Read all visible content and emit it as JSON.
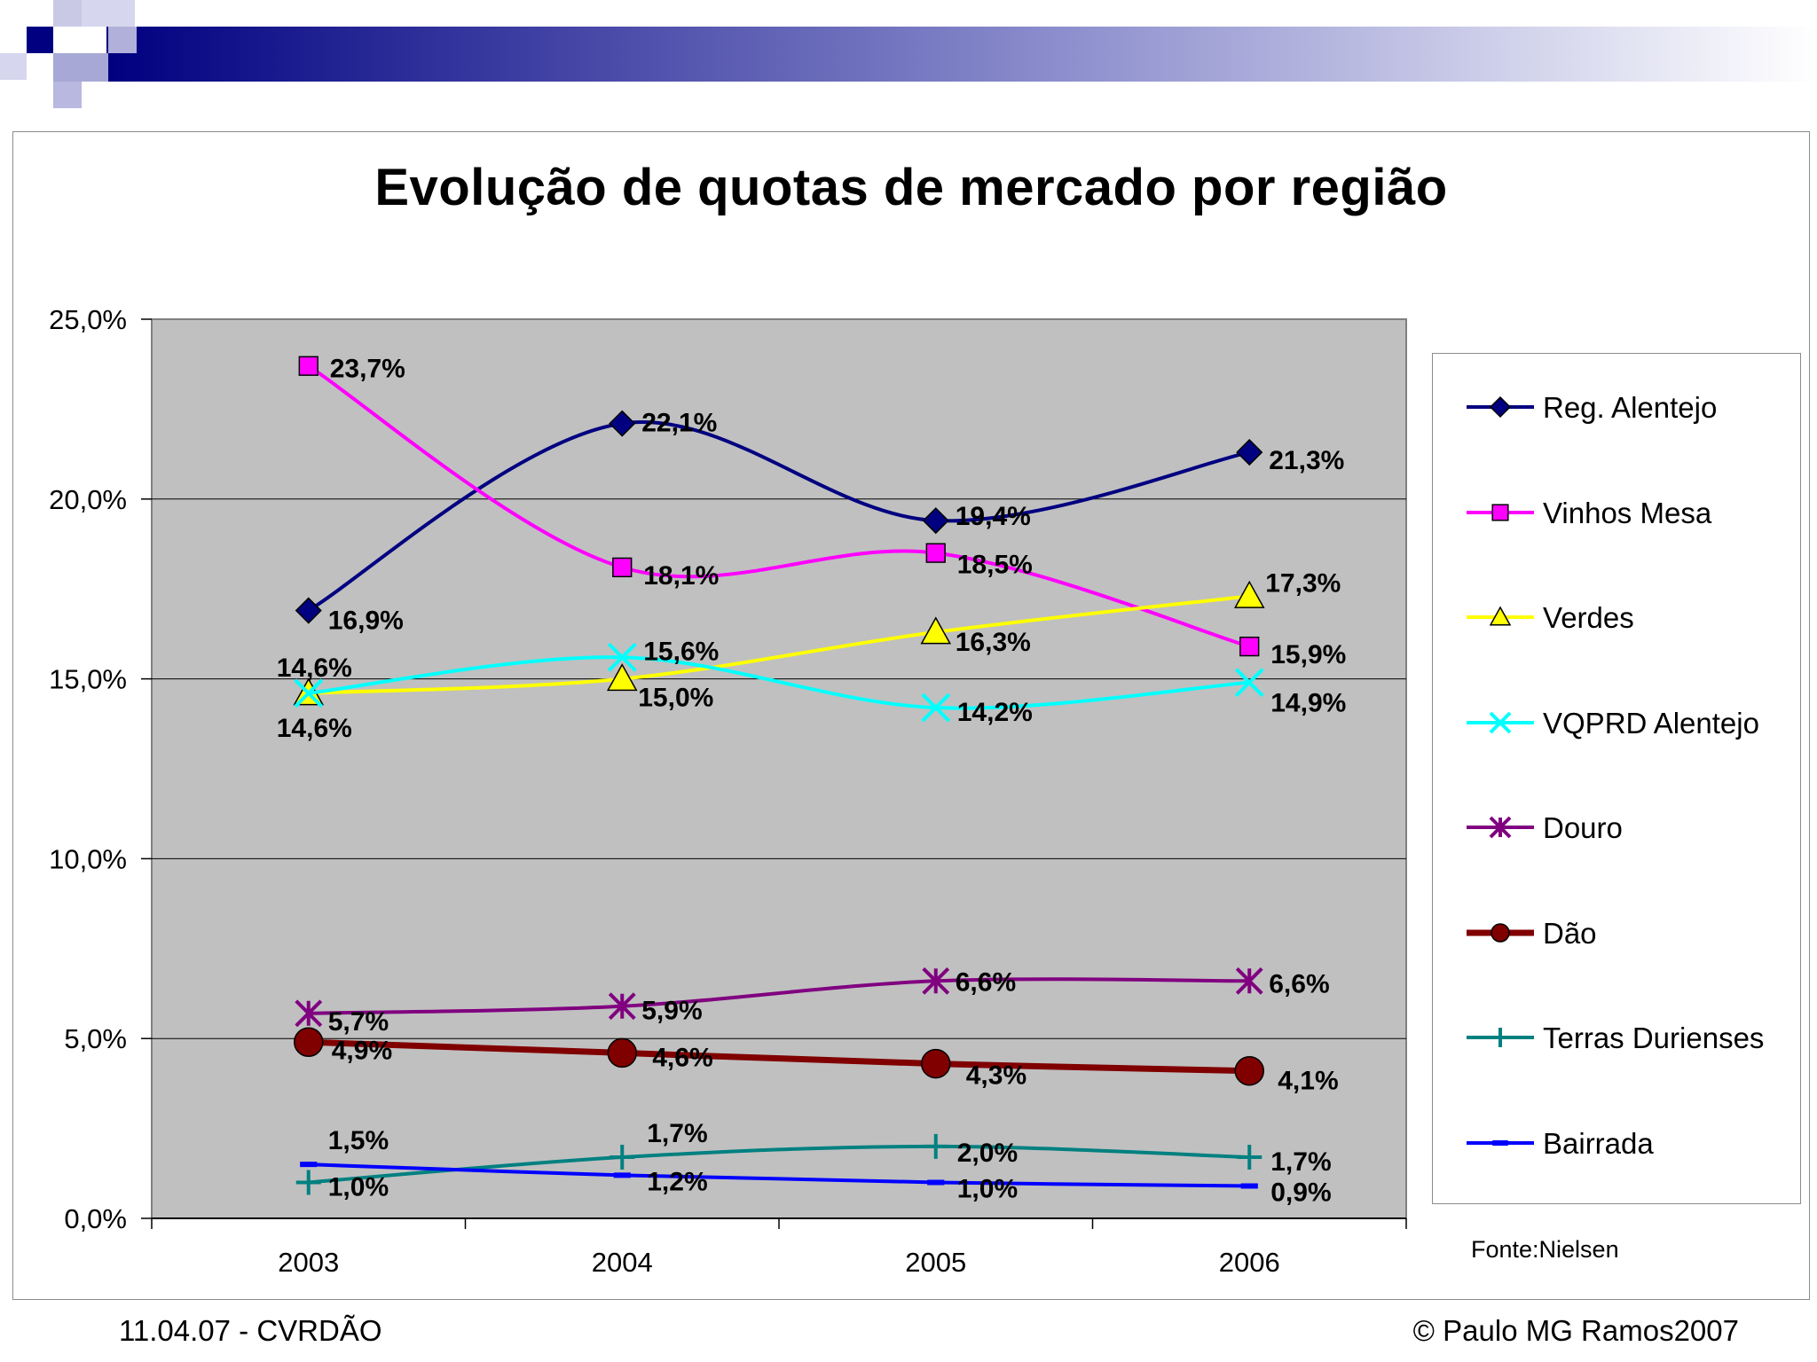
{
  "chart_data": {
    "type": "line",
    "title": "Evolução de quotas de mercado por região",
    "xlabel": "",
    "ylabel": "",
    "categories": [
      "2003",
      "2004",
      "2005",
      "2006"
    ],
    "ylim": [
      0,
      25
    ],
    "yticks": [
      "0,0%",
      "5,0%",
      "10,0%",
      "15,0%",
      "20,0%",
      "25,0%"
    ],
    "grid": true,
    "legend_position": "right",
    "series": [
      {
        "name": "Reg. Alentejo",
        "values": [
          16.9,
          22.1,
          19.4,
          21.3
        ],
        "labels": [
          "16,9%",
          "22,1%",
          "19,4%",
          "21,3%"
        ],
        "color": "#000080",
        "marker": "diamond"
      },
      {
        "name": "Vinhos Mesa",
        "values": [
          23.7,
          18.1,
          18.5,
          15.9
        ],
        "labels": [
          "23,7%",
          "18,1%",
          "18,5%",
          "15,9%"
        ],
        "color": "#ff00ff",
        "marker": "square"
      },
      {
        "name": "Verdes",
        "values": [
          14.6,
          15.0,
          16.3,
          17.3
        ],
        "labels": [
          "14,6%",
          "15,0%",
          "16,3%",
          "17,3%"
        ],
        "color": "#ffff00",
        "marker": "triangle"
      },
      {
        "name": "VQPRD Alentejo",
        "values": [
          14.6,
          15.6,
          14.2,
          14.9
        ],
        "labels": [
          "14,6%",
          "15,6%",
          "14,2%",
          "14,9%"
        ],
        "color": "#00ffff",
        "marker": "x"
      },
      {
        "name": "Douro",
        "values": [
          5.7,
          5.9,
          6.6,
          6.6
        ],
        "labels": [
          "5,7%",
          "5,9%",
          "6,6%",
          "6,6%"
        ],
        "color": "#800080",
        "marker": "star"
      },
      {
        "name": "Dão",
        "values": [
          4.9,
          4.6,
          4.3,
          4.1
        ],
        "labels": [
          "4,9%",
          "4,6%",
          "4,3%",
          "4,1%"
        ],
        "color": "#800000",
        "marker": "circle"
      },
      {
        "name": "Terras Durienses",
        "values": [
          1.0,
          1.7,
          2.0,
          1.7
        ],
        "labels": [
          "1,0%",
          "1,7%",
          "2,0%",
          "1,7%"
        ],
        "color": "#008080",
        "marker": "plus"
      },
      {
        "name": "Bairrada",
        "values": [
          1.5,
          1.2,
          1.0,
          0.9
        ],
        "labels": [
          "1,5%",
          "1,2%",
          "1,0%",
          "0,9%"
        ],
        "color": "#0000ff",
        "marker": "dash"
      }
    ]
  },
  "source": "Fonte:Nielsen",
  "footer": {
    "left": "11.04.07 - CVRDÃO",
    "right": "© Paulo MG Ramos2007"
  }
}
